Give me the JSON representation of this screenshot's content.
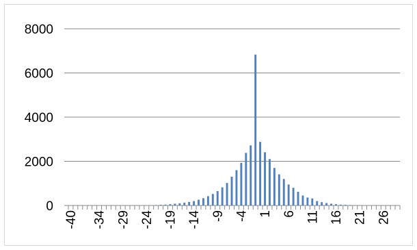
{
  "chart_data": {
    "type": "bar",
    "title": "",
    "xlabel": "",
    "ylabel": "",
    "ylim": [
      0,
      8000
    ],
    "y_ticks": [
      0,
      2000,
      4000,
      6000,
      8000
    ],
    "grid": "horizontal",
    "bar_color": "#4f81bd",
    "x_tick_labels": [
      "-40",
      "-34",
      "-29",
      "-24",
      "-19",
      "-14",
      "-9",
      "-4",
      "1",
      "6",
      "11",
      "16",
      "21",
      "26"
    ],
    "x_tick_values": [
      -40,
      -34,
      -29,
      -24,
      -19,
      -14,
      -9,
      -4,
      1,
      6,
      11,
      16,
      21,
      26
    ],
    "series": [
      {
        "x": [
          -40,
          -39,
          -38,
          -37,
          -36,
          -35,
          -34,
          -33,
          -32,
          -31,
          -30,
          -29,
          -28,
          -27,
          -26,
          -25,
          -24,
          -23,
          -22,
          -21,
          -20,
          -19,
          -18,
          -17,
          -16,
          -15,
          -14,
          -13,
          -12,
          -11,
          -10,
          -9,
          -8,
          -7,
          -6,
          -5,
          -4,
          -3,
          -2,
          -1,
          0,
          1,
          2,
          3,
          4,
          5,
          6,
          7,
          8,
          9,
          10,
          11,
          12,
          13,
          14,
          15,
          16,
          17,
          18,
          19,
          20,
          21,
          22,
          23,
          24,
          25,
          26,
          27,
          28,
          29
        ],
        "values": [
          0,
          0,
          0,
          0,
          0,
          0,
          0,
          0,
          0,
          0,
          0,
          0,
          0,
          0,
          0,
          0,
          5,
          10,
          20,
          30,
          40,
          60,
          80,
          100,
          130,
          160,
          200,
          260,
          330,
          420,
          520,
          650,
          820,
          1020,
          1300,
          1600,
          1930,
          2380,
          2720,
          6830,
          2880,
          2410,
          2100,
          1700,
          1410,
          1200,
          950,
          800,
          620,
          450,
          360,
          320,
          200,
          150,
          110,
          80,
          60,
          40,
          30,
          20,
          10,
          5,
          0,
          0,
          0,
          0,
          0,
          0,
          0,
          0
        ]
      }
    ]
  }
}
